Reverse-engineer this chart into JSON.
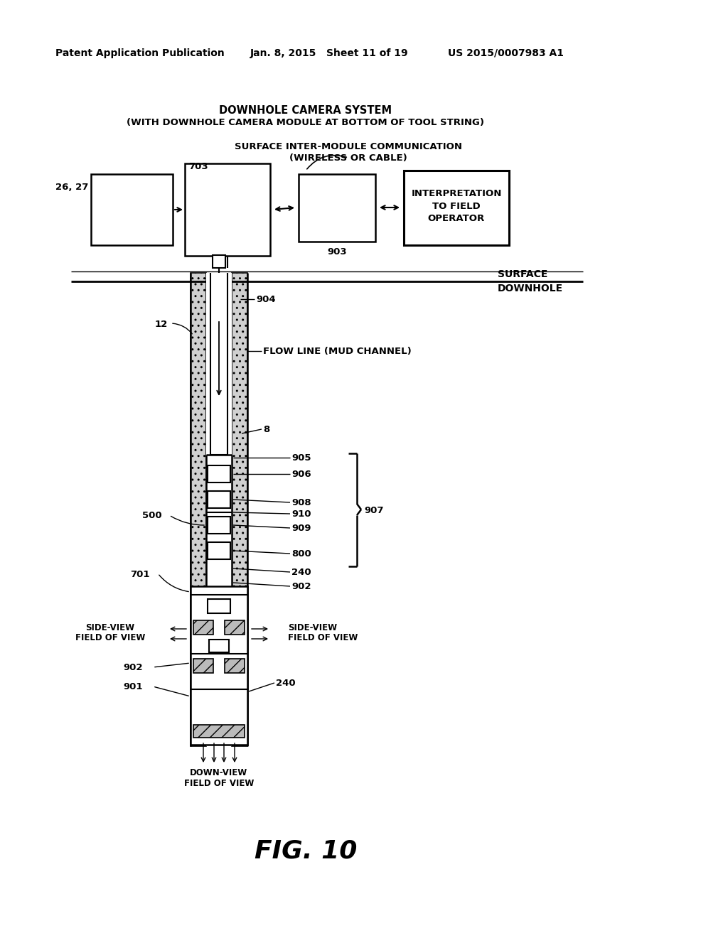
{
  "bg_color": "#ffffff",
  "header_left": "Patent Application Publication",
  "header_mid": "Jan. 8, 2015   Sheet 11 of 19",
  "header_right": "US 2015/0007983 A1",
  "title_line1": "DOWNHOLE CAMERA SYSTEM",
  "title_line2": "(WITH DOWNHOLE CAMERA MODULE AT BOTTOM OF TOOL STRING)",
  "fig_label": "FIG. 10",
  "surface_label": "SURFACE",
  "downhole_label": "DOWNHOLE",
  "flow_line_label": "FLOW LINE (MUD CHANNEL)",
  "surf_comm1": "SURFACE INTER-MODULE COMMUNICATION",
  "surf_comm2": "(WIRELESS OR CABLE)",
  "interp1": "INTERPRETATION",
  "interp2": "TO FIELD",
  "interp3": "OPERATOR",
  "l_2627": "26, 27",
  "l_703": "703",
  "l_903": "903",
  "l_904": "904",
  "l_905": "905",
  "l_906": "906",
  "l_907": "907",
  "l_908": "908",
  "l_909": "909",
  "l_910": "910",
  "l_800": "800",
  "l_500": "500",
  "l_701": "701",
  "l_240a": "240",
  "l_240b": "240",
  "l_902a": "902",
  "l_902b": "902",
  "l_901": "901",
  "l_8": "8",
  "l_12": "12",
  "side_view_l1": "SIDE-VIEW",
  "side_view_l2": "FIELD OF VIEW",
  "side_view_r1": "SIDE-VIEW",
  "side_view_r2": "FIELD OF VIEW",
  "down_view1": "DOWN-VIEW",
  "down_view2": "FIELD OF VIEW"
}
